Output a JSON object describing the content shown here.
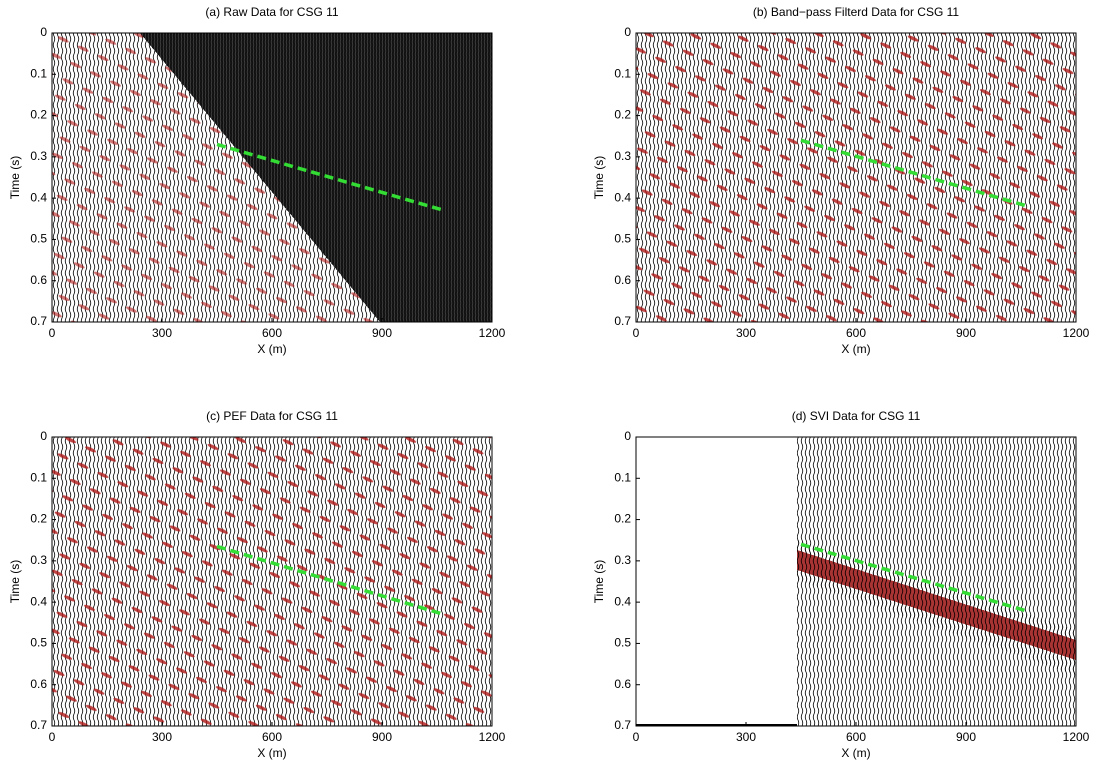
{
  "chart_data": [
    {
      "type": "line",
      "title": "(a) Raw Data for CSG 11",
      "x_label": "X (m)",
      "y_label": "Time (s)",
      "xlim": [
        0,
        1200
      ],
      "xticks": [
        0,
        300,
        600,
        900,
        1200
      ],
      "ylim": [
        0,
        0.7
      ],
      "yticks": [
        0,
        0.1,
        0.2,
        0.3,
        0.4,
        0.5,
        0.6,
        0.7
      ],
      "y_reversed": true,
      "x": [
        450,
        1070
      ],
      "values": [
        0.27,
        0.43
      ],
      "color": "#33dd33",
      "line_style": "dashed"
    },
    {
      "type": "line",
      "title": "(b) Band−pass Filterd Data for CSG 11",
      "x_label": "X (m)",
      "y_label": "Time (s)",
      "xlim": [
        0,
        1200
      ],
      "xticks": [
        0,
        300,
        600,
        900,
        1200
      ],
      "ylim": [
        0,
        0.7
      ],
      "yticks": [
        0,
        0.1,
        0.2,
        0.3,
        0.4,
        0.5,
        0.6,
        0.7
      ],
      "y_reversed": true,
      "x": [
        450,
        1070
      ],
      "values": [
        0.26,
        0.42
      ],
      "color": "#33dd33",
      "line_style": "dashed"
    },
    {
      "type": "line",
      "title": "(c) PEF Data for CSG 11",
      "x_label": "X (m)",
      "y_label": "Time (s)",
      "xlim": [
        0,
        1200
      ],
      "xticks": [
        0,
        300,
        600,
        900,
        1200
      ],
      "ylim": [
        0,
        0.7
      ],
      "yticks": [
        0,
        0.1,
        0.2,
        0.3,
        0.4,
        0.5,
        0.6,
        0.7
      ],
      "y_reversed": true,
      "x": [
        450,
        1070
      ],
      "values": [
        0.265,
        0.43
      ],
      "color": "#33dd33",
      "line_style": "dashed"
    },
    {
      "type": "line",
      "title": "(d) SVI Data for CSG 11",
      "x_label": "X (m)",
      "y_label": "Time (s)",
      "xlim": [
        0,
        1200
      ],
      "xticks": [
        0,
        300,
        600,
        900,
        1200
      ],
      "ylim": [
        0,
        0.7
      ],
      "yticks": [
        0,
        0.1,
        0.2,
        0.3,
        0.4,
        0.5,
        0.6,
        0.7
      ],
      "y_reversed": true,
      "x": [
        450,
        1060
      ],
      "values": [
        0.26,
        0.42
      ],
      "color": "#33dd33",
      "line_style": "dashed"
    }
  ]
}
